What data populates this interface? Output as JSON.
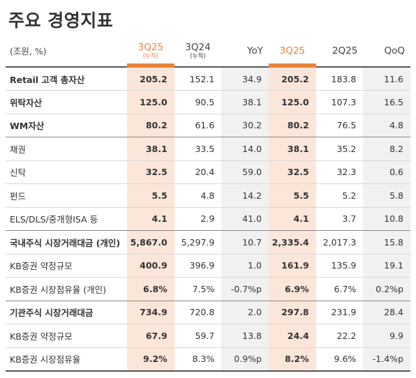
{
  "title": "주요 경영지표",
  "unit_label": "(조원, %)",
  "columns": [
    {
      "label": "3Q25",
      "sub": "(누적)"
    },
    {
      "label": "3Q24",
      "sub": "(누적)"
    },
    {
      "label": "YoY",
      "sub": ""
    },
    {
      "label": "3Q25",
      "sub": ""
    },
    {
      "label": "2Q25",
      "sub": ""
    },
    {
      "label": "QoQ",
      "sub": ""
    }
  ],
  "rows": [
    {
      "label": "Retail 고객 총자산",
      "values": [
        "205.2",
        "152.1",
        "34.9",
        "205.2",
        "183.8",
        "11.6"
      ]
    },
    {
      "label": "위탁자산",
      "values": [
        "125.0",
        "90.5",
        "38.1",
        "125.0",
        "107.3",
        "16.5"
      ]
    },
    {
      "label": "WM자산",
      "values": [
        "80.2",
        "61.6",
        "30.2",
        "80.2",
        "76.5",
        "4.8"
      ]
    },
    {
      "label": "채권",
      "values": [
        "38.1",
        "33.5",
        "14.0",
        "38.1",
        "35.2",
        "8.2"
      ]
    },
    {
      "label": "신탁",
      "values": [
        "32.5",
        "20.4",
        "59.0",
        "32.5",
        "32.3",
        "0.6"
      ]
    },
    {
      "label": "펀드",
      "values": [
        "5.5",
        "4.8",
        "14.2",
        "5.5",
        "5.2",
        "5.8"
      ]
    },
    {
      "label": "ELS/DLS/중개형ISA 등",
      "values": [
        "4.1",
        "2.9",
        "41.0",
        "4.1",
        "3.7",
        "10.8"
      ]
    },
    {
      "label": "국내주식 시장거래대금 (개인)",
      "values": [
        "5,867.0",
        "5,297.9",
        "10.7",
        "2,335.4",
        "2,017.3",
        "15.8"
      ]
    },
    {
      "label": "KB증권 약정규모",
      "values": [
        "400.9",
        "396.9",
        "1.0",
        "161.9",
        "135.9",
        "19.1"
      ]
    },
    {
      "label": "KB증권 시장점유율 (개인)",
      "values": [
        "6.8%",
        "7.5%",
        "-0.7%p",
        "6.9%",
        "6.7%",
        "0.2%p"
      ]
    },
    {
      "label": "기관주식 시장거래대금",
      "values": [
        "734.9",
        "720.8",
        "2.0",
        "297.8",
        "231.9",
        "28.4"
      ]
    },
    {
      "label": "KB증권 약정규모",
      "values": [
        "67.9",
        "59.7",
        "13.8",
        "24.4",
        "22.2",
        "9.9"
      ]
    },
    {
      "label": "KB증권 시장점유율",
      "values": [
        "9.2%",
        "8.3%",
        "0.9%p",
        "8.2%",
        "9.6%",
        "-1.4%p"
      ]
    }
  ],
  "colors": {
    "accent": "#e8833a",
    "highlight_bg": "#fbe6d9",
    "gray_bg": "#f1f1f1"
  }
}
